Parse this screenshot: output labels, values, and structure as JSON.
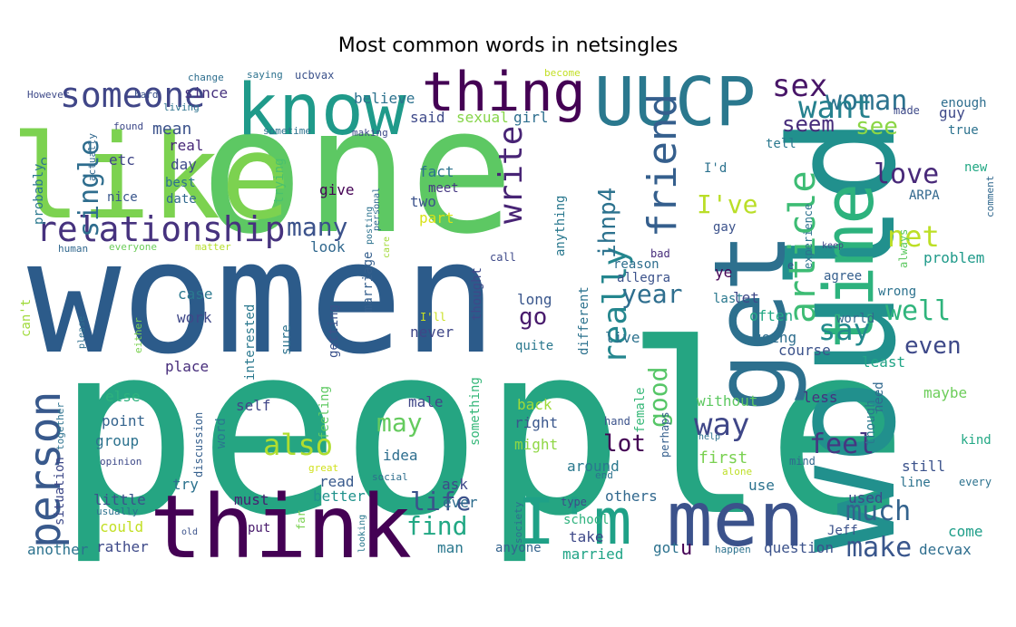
{
  "chart_data": {
    "type": "wordcloud",
    "title": "Most common words in netsingles",
    "background": "#ffffff",
    "palette": "viridis",
    "words": [
      {
        "text": "people",
        "weight": 1.0,
        "color": "#25a582"
      },
      {
        "text": "women",
        "weight": 0.92,
        "color": "#2c5b8a"
      },
      {
        "text": "one",
        "weight": 0.9,
        "color": "#5dc863"
      },
      {
        "text": "like",
        "weight": 0.85,
        "color": "#7cd250"
      },
      {
        "text": "would",
        "weight": 0.72,
        "color": "#21908d"
      },
      {
        "text": "think",
        "weight": 0.6,
        "color": "#440154"
      },
      {
        "text": "get",
        "weight": 0.58,
        "color": "#2d708e"
      },
      {
        "text": "know",
        "weight": 0.5,
        "color": "#1f9a8a"
      },
      {
        "text": "men",
        "weight": 0.5,
        "color": "#3b528b"
      },
      {
        "text": "UUCP",
        "weight": 0.48,
        "color": "#2a788e"
      },
      {
        "text": "thing",
        "weight": 0.46,
        "color": "#440154"
      },
      {
        "text": "time",
        "weight": 0.44,
        "color": "#2db27d"
      },
      {
        "text": "I'm",
        "weight": 0.42,
        "color": "#1fa187"
      },
      {
        "text": "person",
        "weight": 0.38,
        "color": "#38598c"
      },
      {
        "text": "someone",
        "weight": 0.3,
        "color": "#404688"
      },
      {
        "text": "relationship",
        "weight": 0.28,
        "color": "#46327e"
      },
      {
        "text": "friend",
        "weight": 0.27,
        "color": "#355f8d"
      },
      {
        "text": "article",
        "weight": 0.25,
        "color": "#3dbc74"
      },
      {
        "text": "really",
        "weight": 0.25,
        "color": "#24868e"
      },
      {
        "text": "write",
        "weight": 0.24,
        "color": "#482475"
      },
      {
        "text": "sex",
        "weight": 0.22,
        "color": "#481668"
      },
      {
        "text": "woman",
        "weight": 0.21,
        "color": "#2c728e"
      },
      {
        "text": "want",
        "weight": 0.21,
        "color": "#26818e"
      },
      {
        "text": "single",
        "weight": 0.21,
        "color": "#2e6d8e"
      },
      {
        "text": "well",
        "weight": 0.2,
        "color": "#2fb47c"
      },
      {
        "text": "say",
        "weight": 0.2,
        "color": "#238a8d"
      },
      {
        "text": "good",
        "weight": 0.19,
        "color": "#56c667"
      },
      {
        "text": "way",
        "weight": 0.19,
        "color": "#3f4788"
      },
      {
        "text": "may",
        "weight": 0.18,
        "color": "#65cb5e"
      },
      {
        "text": "also",
        "weight": 0.18,
        "color": "#b0dd2f"
      },
      {
        "text": "life",
        "weight": 0.17,
        "color": "#3b528b"
      },
      {
        "text": "find",
        "weight": 0.17,
        "color": "#22a884"
      },
      {
        "text": "much",
        "weight": 0.17,
        "color": "#33638d"
      },
      {
        "text": "make",
        "weight": 0.17,
        "color": "#39568c"
      },
      {
        "text": "feel",
        "weight": 0.16,
        "color": "#453781"
      },
      {
        "text": "love",
        "weight": 0.16,
        "color": "#482979"
      },
      {
        "text": "net",
        "weight": 0.16,
        "color": "#bddf26"
      },
      {
        "text": "I've",
        "weight": 0.15,
        "color": "#bade28"
      },
      {
        "text": "seem",
        "weight": 0.15,
        "color": "#472d7b"
      },
      {
        "text": "see",
        "weight": 0.15,
        "color": "#8bd646"
      },
      {
        "text": "year",
        "weight": 0.15,
        "color": "#2e6e8e"
      },
      {
        "text": "many",
        "weight": 0.15,
        "color": "#3b528b"
      },
      {
        "text": "go",
        "weight": 0.15,
        "color": "#481a6c"
      },
      {
        "text": "lot",
        "weight": 0.14,
        "color": "#440154"
      },
      {
        "text": "even",
        "weight": 0.14,
        "color": "#3e4989"
      },
      {
        "text": "ihnp4",
        "weight": 0.13,
        "color": "#2c728e"
      },
      {
        "text": "etc",
        "weight": 0.09,
        "color": "#404588"
      },
      {
        "text": "mean",
        "weight": 0.09,
        "color": "#3b528b"
      },
      {
        "text": "real",
        "weight": 0.09,
        "color": "#482878"
      },
      {
        "text": "day",
        "weight": 0.09,
        "color": "#3e4a89"
      },
      {
        "text": "best",
        "weight": 0.08,
        "color": "#2c728e"
      },
      {
        "text": "date",
        "weight": 0.08,
        "color": "#31688e"
      },
      {
        "text": "nice",
        "weight": 0.08,
        "color": "#39568c"
      },
      {
        "text": "since",
        "weight": 0.09,
        "color": "#46327e"
      },
      {
        "text": "believe",
        "weight": 0.09,
        "color": "#2c728e"
      },
      {
        "text": "said",
        "weight": 0.09,
        "color": "#3e4989"
      },
      {
        "text": "sexual",
        "weight": 0.09,
        "color": "#86d549"
      },
      {
        "text": "girl",
        "weight": 0.09,
        "color": "#2e6e8e"
      },
      {
        "text": "fact",
        "weight": 0.09,
        "color": "#2c728e"
      },
      {
        "text": "meet",
        "weight": 0.08,
        "color": "#453781"
      },
      {
        "text": "two",
        "weight": 0.09,
        "color": "#3b528b"
      },
      {
        "text": "part",
        "weight": 0.08,
        "color": "#d8e219"
      },
      {
        "text": "give",
        "weight": 0.08,
        "color": "#440154"
      },
      {
        "text": "look",
        "weight": 0.09,
        "color": "#31688e"
      },
      {
        "text": "marriage",
        "weight": 0.08,
        "color": "#355f8d"
      },
      {
        "text": "case",
        "weight": 0.08,
        "color": "#2a788e"
      },
      {
        "text": "work",
        "weight": 0.09,
        "color": "#3f4788"
      },
      {
        "text": "interested",
        "weight": 0.08,
        "color": "#2a788e"
      },
      {
        "text": "sure",
        "weight": 0.08,
        "color": "#2c728e"
      },
      {
        "text": "getting",
        "weight": 0.08,
        "color": "#3b528b"
      },
      {
        "text": "never",
        "weight": 0.08,
        "color": "#3f4788"
      },
      {
        "text": "place",
        "weight": 0.08,
        "color": "#472d7b"
      },
      {
        "text": "else",
        "weight": 0.08,
        "color": "#2db27d"
      },
      {
        "text": "self",
        "weight": 0.08,
        "color": "#404688"
      },
      {
        "text": "point",
        "weight": 0.08,
        "color": "#33638d"
      },
      {
        "text": "group",
        "weight": 0.08,
        "color": "#2c728e"
      },
      {
        "text": "feeling",
        "weight": 0.08,
        "color": "#5ec962"
      },
      {
        "text": "word",
        "weight": 0.08,
        "color": "#2a788e"
      },
      {
        "text": "discussion",
        "weight": 0.06,
        "color": "#355f8d"
      },
      {
        "text": "male",
        "weight": 0.08,
        "color": "#404688"
      },
      {
        "text": "right",
        "weight": 0.08,
        "color": "#39568c"
      },
      {
        "text": "might",
        "weight": 0.08,
        "color": "#8fd744"
      },
      {
        "text": "back",
        "weight": 0.08,
        "color": "#a0da39"
      },
      {
        "text": "idea",
        "weight": 0.08,
        "color": "#2e6e8e"
      },
      {
        "text": "ask",
        "weight": 0.08,
        "color": "#3e4989"
      },
      {
        "text": "ever",
        "weight": 0.08,
        "color": "#2e6d8e"
      },
      {
        "text": "read",
        "weight": 0.08,
        "color": "#38598c"
      },
      {
        "text": "better",
        "weight": 0.08,
        "color": "#20928c"
      },
      {
        "text": "try",
        "weight": 0.08,
        "color": "#2c728e"
      },
      {
        "text": "little",
        "weight": 0.08,
        "color": "#3b528b"
      },
      {
        "text": "must",
        "weight": 0.08,
        "color": "#482071"
      },
      {
        "text": "could",
        "weight": 0.08,
        "color": "#c2df23"
      },
      {
        "text": "rather",
        "weight": 0.08,
        "color": "#3e4a89"
      },
      {
        "text": "another",
        "weight": 0.08,
        "color": "#2c728e"
      },
      {
        "text": "put",
        "weight": 0.07,
        "color": "#481a6c"
      },
      {
        "text": "far",
        "weight": 0.06,
        "color": "#7ad151"
      },
      {
        "text": "man",
        "weight": 0.08,
        "color": "#2a788e"
      },
      {
        "text": "anyone",
        "weight": 0.08,
        "color": "#33638d"
      },
      {
        "text": "married",
        "weight": 0.08,
        "color": "#20a486"
      },
      {
        "text": "take",
        "weight": 0.08,
        "color": "#3e4989"
      },
      {
        "text": "got",
        "weight": 0.08,
        "color": "#2c728e"
      },
      {
        "text": "u",
        "weight": 0.09,
        "color": "#440154"
      },
      {
        "text": "question",
        "weight": 0.08,
        "color": "#3b528b"
      },
      {
        "text": "decvax",
        "weight": 0.08,
        "color": "#2e6e8e"
      },
      {
        "text": "come",
        "weight": 0.08,
        "color": "#1f9e89"
      },
      {
        "text": "used",
        "weight": 0.08,
        "color": "#3e4a89"
      },
      {
        "text": "use",
        "weight": 0.08,
        "color": "#2c728e"
      },
      {
        "text": "others",
        "weight": 0.08,
        "color": "#31688e"
      },
      {
        "text": "around",
        "weight": 0.08,
        "color": "#2a788e"
      },
      {
        "text": "first",
        "weight": 0.08,
        "color": "#7ad151"
      },
      {
        "text": "without",
        "weight": 0.08,
        "color": "#5ec962"
      },
      {
        "text": "still",
        "weight": 0.08,
        "color": "#3b528b"
      },
      {
        "text": "line",
        "weight": 0.07,
        "color": "#2c728e"
      },
      {
        "text": "less",
        "weight": 0.08,
        "color": "#46327e"
      },
      {
        "text": "need",
        "weight": 0.08,
        "color": "#31688e"
      },
      {
        "text": "though",
        "weight": 0.08,
        "color": "#2a788e"
      },
      {
        "text": "maybe",
        "weight": 0.08,
        "color": "#6ccd5a"
      },
      {
        "text": "least",
        "weight": 0.08,
        "color": "#20a486"
      },
      {
        "text": "course",
        "weight": 0.08,
        "color": "#3b528b"
      },
      {
        "text": "going",
        "weight": 0.08,
        "color": "#2e6e8e"
      },
      {
        "text": "often",
        "weight": 0.08,
        "color": "#22a884"
      },
      {
        "text": "live",
        "weight": 0.08,
        "color": "#2c728e"
      },
      {
        "text": "long",
        "weight": 0.08,
        "color": "#39568c"
      },
      {
        "text": "let",
        "weight": 0.08,
        "color": "#3e4989"
      },
      {
        "text": "last",
        "weight": 0.07,
        "color": "#2a788e"
      },
      {
        "text": "wrong",
        "weight": 0.07,
        "color": "#2c728e"
      },
      {
        "text": "world",
        "weight": 0.07,
        "color": "#31688e"
      },
      {
        "text": "agree",
        "weight": 0.07,
        "color": "#355f8d"
      },
      {
        "text": "problem",
        "weight": 0.08,
        "color": "#1f9a8a"
      },
      {
        "text": "guy",
        "weight": 0.08,
        "color": "#3e4989"
      },
      {
        "text": "true",
        "weight": 0.07,
        "color": "#2c728e"
      },
      {
        "text": "made",
        "weight": 0.06,
        "color": "#3e4a89"
      },
      {
        "text": "enough",
        "weight": 0.08,
        "color": "#2e6e8e"
      },
      {
        "text": "tell",
        "weight": 0.07,
        "color": "#2a788e"
      },
      {
        "text": "new",
        "weight": 0.07,
        "color": "#22a884"
      },
      {
        "text": "ARPA",
        "weight": 0.07,
        "color": "#31688e"
      },
      {
        "text": "I'd",
        "weight": 0.07,
        "color": "#2c728e"
      },
      {
        "text": "gay",
        "weight": 0.06,
        "color": "#3b528b"
      },
      {
        "text": "experience",
        "weight": 0.06,
        "color": "#2c728e"
      },
      {
        "text": "keep",
        "weight": 0.05,
        "color": "#404688"
      },
      {
        "text": "always",
        "weight": 0.06,
        "color": "#5ec962"
      },
      {
        "text": "ye",
        "weight": 0.08,
        "color": "#440154"
      },
      {
        "text": "e",
        "weight": 0.05,
        "color": "#3b528b"
      },
      {
        "text": "reason",
        "weight": 0.08,
        "color": "#2e6e8e"
      },
      {
        "text": "allegra",
        "weight": 0.08,
        "color": "#3b528b"
      },
      {
        "text": "bad",
        "weight": 0.06,
        "color": "#472d7b"
      },
      {
        "text": "call",
        "weight": 0.06,
        "color": "#3e4989"
      },
      {
        "text": "different",
        "weight": 0.08,
        "color": "#2c728e"
      },
      {
        "text": "quite",
        "weight": 0.07,
        "color": "#2a788e"
      },
      {
        "text": "female",
        "weight": 0.07,
        "color": "#37b878"
      },
      {
        "text": "perhaps",
        "weight": 0.06,
        "color": "#355f8d"
      },
      {
        "text": "hand",
        "weight": 0.06,
        "color": "#3b528b"
      },
      {
        "text": "help",
        "weight": 0.05,
        "color": "#2c728e"
      },
      {
        "text": "mind",
        "weight": 0.06,
        "color": "#31688e"
      },
      {
        "text": "alone",
        "weight": 0.05,
        "color": "#bddf26"
      },
      {
        "text": "end",
        "weight": 0.05,
        "color": "#2c728e"
      },
      {
        "text": "type",
        "weight": 0.06,
        "color": "#3e4a89"
      },
      {
        "text": "school",
        "weight": 0.06,
        "color": "#2db27d"
      },
      {
        "text": "happen",
        "weight": 0.05,
        "color": "#2c728e"
      },
      {
        "text": "society",
        "weight": 0.05,
        "color": "#2e6e8e"
      },
      {
        "text": "Jeff",
        "weight": 0.06,
        "color": "#3b528b"
      },
      {
        "text": "kind",
        "weight": 0.06,
        "color": "#22a884"
      },
      {
        "text": "every",
        "weight": 0.06,
        "color": "#2c728e"
      },
      {
        "text": "comment",
        "weight": 0.04,
        "color": "#31688e"
      },
      {
        "text": "something",
        "weight": 0.07,
        "color": "#35b779"
      },
      {
        "text": "thought",
        "weight": 0.07,
        "color": "#3e4989"
      },
      {
        "text": "anything",
        "weight": 0.07,
        "color": "#2a788e"
      },
      {
        "text": "I'll",
        "weight": 0.06,
        "color": "#c8e020"
      },
      {
        "text": "sometime",
        "weight": 0.05,
        "color": "#2c728e"
      },
      {
        "text": "making",
        "weight": 0.05,
        "color": "#3e4989"
      },
      {
        "text": "posting",
        "weight": 0.04,
        "color": "#2c728e"
      },
      {
        "text": "personal",
        "weight": 0.04,
        "color": "#31688e"
      },
      {
        "text": "care",
        "weight": 0.04,
        "color": "#a2da37"
      },
      {
        "text": "great",
        "weight": 0.05,
        "color": "#d0e11c"
      },
      {
        "text": "social",
        "weight": 0.05,
        "color": "#2e6e8e"
      },
      {
        "text": "opinion",
        "weight": 0.05,
        "color": "#3e4a89"
      },
      {
        "text": "usually",
        "weight": 0.05,
        "color": "#2c728e"
      },
      {
        "text": "old",
        "weight": 0.05,
        "color": "#3b528b"
      },
      {
        "text": "looking",
        "weight": 0.05,
        "color": "#2a788e"
      },
      {
        "text": "situation",
        "weight": 0.06,
        "color": "#3e4989"
      },
      {
        "text": "together",
        "weight": 0.05,
        "color": "#2c728e"
      },
      {
        "text": "either",
        "weight": 0.05,
        "color": "#7ad151"
      },
      {
        "text": "please",
        "weight": 0.05,
        "color": "#2e6e8e"
      },
      {
        "text": "can't",
        "weight": 0.06,
        "color": "#9fda3a"
      },
      {
        "text": "matter",
        "weight": 0.05,
        "color": "#b5de2b"
      },
      {
        "text": "human",
        "weight": 0.05,
        "color": "#31688e"
      },
      {
        "text": "everyone",
        "weight": 0.05,
        "color": "#6ccd5a"
      },
      {
        "text": "trying",
        "weight": 0.06,
        "color": "#4ac16d"
      },
      {
        "text": "probably",
        "weight": 0.06,
        "color": "#2a788e"
      },
      {
        "text": "c",
        "weight": 0.06,
        "color": "#2c728e"
      },
      {
        "text": "actually",
        "weight": 0.05,
        "color": "#31688e"
      },
      {
        "text": "found",
        "weight": 0.05,
        "color": "#3e4989"
      },
      {
        "text": "hard",
        "weight": 0.05,
        "color": "#3b528b"
      },
      {
        "text": "living",
        "weight": 0.05,
        "color": "#2c728e"
      },
      {
        "text": "However",
        "weight": 0.05,
        "color": "#3e4a89"
      },
      {
        "text": "change",
        "weight": 0.05,
        "color": "#2e6e8e"
      },
      {
        "text": "saying",
        "weight": 0.05,
        "color": "#2c728e"
      },
      {
        "text": "ucbvax",
        "weight": 0.06,
        "color": "#3b528b"
      },
      {
        "text": "become",
        "weight": 0.05,
        "color": "#c2df23"
      }
    ]
  }
}
